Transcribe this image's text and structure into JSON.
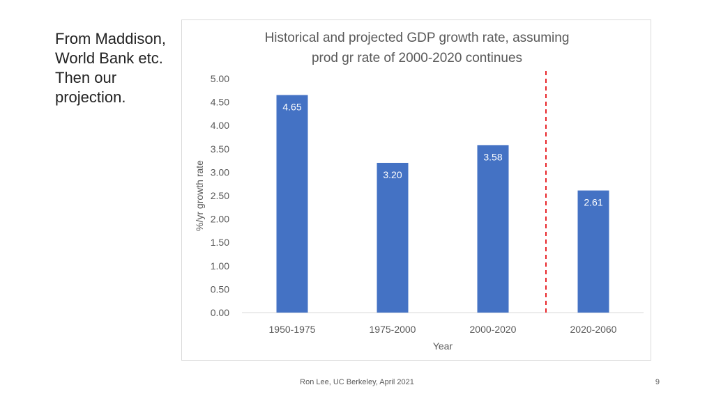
{
  "slide": {
    "note_lines": [
      "From Maddison,",
      "World Bank etc.",
      "Then our",
      "projection."
    ],
    "footer": "Ron Lee, UC Berkeley, April 2021",
    "page_number": "9"
  },
  "colors": {
    "bar": "#4472c4",
    "divider": "#e8262a",
    "axis_text": "#595959",
    "gridline": "#d9d9d9",
    "bar_label": "#ffffff"
  },
  "chart_data": {
    "type": "bar",
    "title_lines": [
      "Historical and projected GDP growth rate, assuming",
      "prod gr rate of 2000-2020 continues"
    ],
    "categories": [
      "1950-1975",
      "1975-2000",
      "2000-2020",
      "2020-2060"
    ],
    "values": [
      4.65,
      3.2,
      3.58,
      2.61
    ],
    "data_labels": [
      "4.65",
      "3.20",
      "3.58",
      "2.61"
    ],
    "xlabel": "Year",
    "ylabel": "%/yr growth rate",
    "ylim": [
      0,
      5
    ],
    "yticks": [
      "0.00",
      "0.50",
      "1.00",
      "1.50",
      "2.00",
      "2.50",
      "3.00",
      "3.50",
      "4.00",
      "4.50",
      "5.00"
    ],
    "grid": false,
    "projection_divider": "between 2000-2020 and 2020-2060"
  }
}
